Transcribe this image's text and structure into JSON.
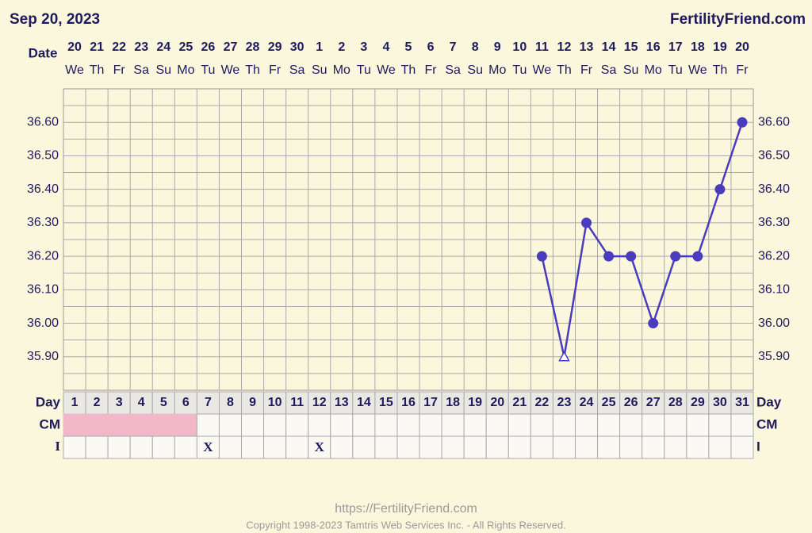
{
  "header": {
    "date": "Sep 20, 2023",
    "site": "FertilityFriend.com"
  },
  "chart_data": {
    "type": "line",
    "row_labels": {
      "date": "Date",
      "day": "Day",
      "cm": "CM",
      "i": "I"
    },
    "categories": [
      "20",
      "21",
      "22",
      "23",
      "24",
      "25",
      "26",
      "27",
      "28",
      "29",
      "30",
      "1",
      "2",
      "3",
      "4",
      "5",
      "6",
      "7",
      "8",
      "9",
      "10",
      "11",
      "12",
      "13",
      "14",
      "15",
      "16",
      "17",
      "18",
      "19",
      "20"
    ],
    "weekdays": [
      "We",
      "Th",
      "Fr",
      "Sa",
      "Su",
      "Mo",
      "Tu",
      "We",
      "Th",
      "Fr",
      "Sa",
      "Su",
      "Mo",
      "Tu",
      "We",
      "Th",
      "Fr",
      "Sa",
      "Su",
      "Mo",
      "Tu",
      "We",
      "Th",
      "Fr",
      "Sa",
      "Su",
      "Mo",
      "Tu",
      "We",
      "Th",
      "Fr"
    ],
    "cycle_days": [
      1,
      2,
      3,
      4,
      5,
      6,
      7,
      8,
      9,
      10,
      11,
      12,
      13,
      14,
      15,
      16,
      17,
      18,
      19,
      20,
      21,
      22,
      23,
      24,
      25,
      26,
      27,
      28,
      29,
      30,
      31
    ],
    "series": [
      {
        "color": "#4b3bbf",
        "values": [
          null,
          null,
          null,
          null,
          null,
          null,
          null,
          null,
          null,
          null,
          null,
          null,
          null,
          null,
          null,
          null,
          null,
          null,
          null,
          null,
          null,
          36.2,
          35.9,
          36.3,
          36.2,
          36.2,
          36.0,
          36.2,
          36.2,
          36.4,
          36.6
        ],
        "point_styles": [
          null,
          null,
          null,
          null,
          null,
          null,
          null,
          null,
          null,
          null,
          null,
          null,
          null,
          null,
          null,
          null,
          null,
          null,
          null,
          null,
          null,
          "dot",
          "open-triangle",
          "dot",
          "dot",
          "dot",
          "dot",
          "dot",
          "dot",
          "dot",
          "dot"
        ]
      }
    ],
    "ylim": [
      35.8,
      36.7
    ],
    "yticks": [
      {
        "value": 35.9,
        "label": "35.90"
      },
      {
        "value": 36.0,
        "label": "36.00"
      },
      {
        "value": 36.1,
        "label": "36.10"
      },
      {
        "value": 36.2,
        "label": "36.20"
      },
      {
        "value": 36.3,
        "label": "36.30"
      },
      {
        "value": 36.4,
        "label": "36.40"
      },
      {
        "value": 36.5,
        "label": "36.50"
      },
      {
        "value": 36.6,
        "label": "36.60"
      }
    ],
    "grid": true,
    "cm_color": "#f2b8c9",
    "cm": [
      true,
      true,
      true,
      true,
      true,
      true,
      false,
      false,
      false,
      false,
      false,
      false,
      false,
      false,
      false,
      false,
      false,
      false,
      false,
      false,
      false,
      false,
      false,
      false,
      false,
      false,
      false,
      false,
      false,
      false,
      false
    ],
    "intercourse": [
      null,
      null,
      null,
      null,
      null,
      null,
      "X",
      null,
      null,
      null,
      null,
      "X",
      null,
      null,
      null,
      null,
      null,
      null,
      null,
      null,
      null,
      null,
      null,
      null,
      null,
      null,
      null,
      null,
      null,
      null,
      null
    ]
  },
  "footer": {
    "url": "https://FertilityFriend.com",
    "copyright": "Copyright 1998-2023 Tamtris Web Services Inc. - All Rights Reserved."
  }
}
